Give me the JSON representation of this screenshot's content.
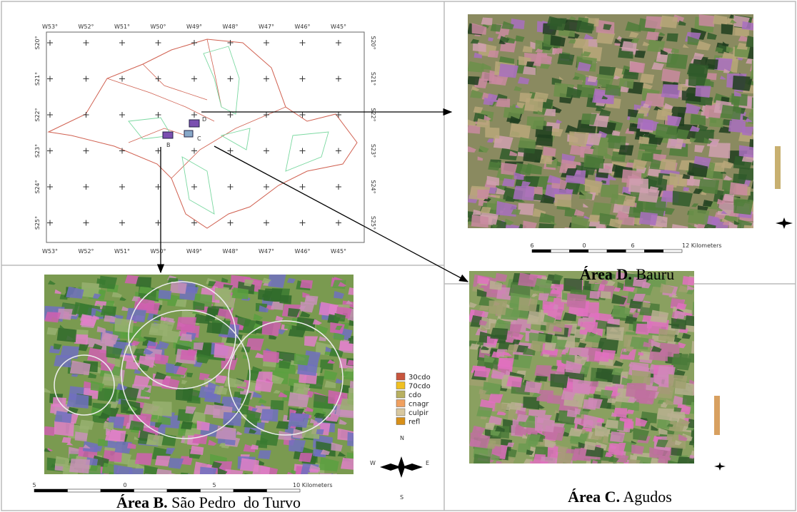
{
  "overview_map": {
    "longitude_labels": [
      "W53°",
      "W52°",
      "W51°",
      "W50°",
      "W49°",
      "W48°",
      "W47°",
      "W46°",
      "W45°"
    ],
    "latitude_labels": [
      "S20°",
      "S21°",
      "S22°",
      "S23°",
      "S24°",
      "S25°"
    ],
    "area_labels": {
      "d": "D",
      "c": "C",
      "b": "B"
    }
  },
  "panel_d": {
    "caption_bold": "Área D.",
    "caption": " Bauru",
    "scale_labels": [
      "6",
      "0",
      "6",
      "12 Kilometers"
    ]
  },
  "panel_b": {
    "caption_bold": "Área B.",
    "caption": " São Pedro  do Turvo",
    "scale_labels": [
      "5",
      "0",
      "5",
      "10 Kilometers"
    ],
    "legend": [
      {
        "name": "30cdo",
        "color": "#c8553d"
      },
      {
        "name": "70cdo",
        "color": "#f0c020"
      },
      {
        "name": "cdo",
        "color": "#b8b060"
      },
      {
        "name": "cnagr",
        "color": "#f0a060"
      },
      {
        "name": "culpir",
        "color": "#d8c8a0"
      },
      {
        "name": "refl",
        "color": "#d89018"
      }
    ],
    "compass": {
      "n": "N",
      "s": "S",
      "w": "W",
      "e": "E"
    }
  },
  "panel_c": {
    "caption_bold": "Área C.",
    "caption": " Agudos"
  }
}
